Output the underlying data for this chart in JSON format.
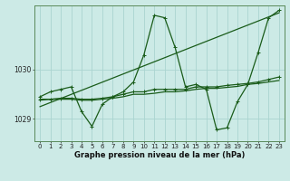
{
  "xlabel": "Graphe pression niveau de la mer (hPa)",
  "background_color": "#cceae6",
  "grid_color": "#aad4d0",
  "line_color": "#1a5c1a",
  "ylim": [
    1028.55,
    1031.3
  ],
  "xlim": [
    -0.5,
    23.5
  ],
  "xticks": [
    0,
    1,
    2,
    3,
    4,
    5,
    6,
    7,
    8,
    9,
    10,
    11,
    12,
    13,
    14,
    15,
    16,
    17,
    18,
    19,
    20,
    21,
    22,
    23
  ],
  "ytick_vals": [
    1029,
    1030
  ],
  "series_main": [
    1029.45,
    1029.55,
    1029.6,
    1029.65,
    1029.15,
    1028.85,
    1029.3,
    1029.45,
    1029.55,
    1029.75,
    1030.3,
    1031.1,
    1031.05,
    1030.45,
    1029.65,
    1029.7,
    1029.6,
    1028.78,
    1028.82,
    1029.35,
    1029.7,
    1030.35,
    1031.05,
    1031.2
  ],
  "series_flat1": [
    1029.4,
    1029.4,
    1029.42,
    1029.42,
    1029.4,
    1029.4,
    1029.42,
    1029.45,
    1029.5,
    1029.55,
    1029.55,
    1029.6,
    1029.6,
    1029.6,
    1029.6,
    1029.65,
    1029.65,
    1029.65,
    1029.68,
    1029.7,
    1029.72,
    1029.75,
    1029.8,
    1029.85
  ],
  "series_flat2": [
    1029.38,
    1029.4,
    1029.4,
    1029.4,
    1029.38,
    1029.38,
    1029.4,
    1029.42,
    1029.45,
    1029.5,
    1029.5,
    1029.52,
    1029.55,
    1029.55,
    1029.57,
    1029.6,
    1029.62,
    1029.62,
    1029.64,
    1029.66,
    1029.7,
    1029.72,
    1029.75,
    1029.78
  ],
  "trend_x": [
    0,
    23
  ],
  "trend_y": [
    1029.25,
    1031.15
  ],
  "marker_size": 2.5,
  "line_width": 0.9,
  "tick_fontsize": 5.0,
  "xlabel_fontsize": 6.0
}
